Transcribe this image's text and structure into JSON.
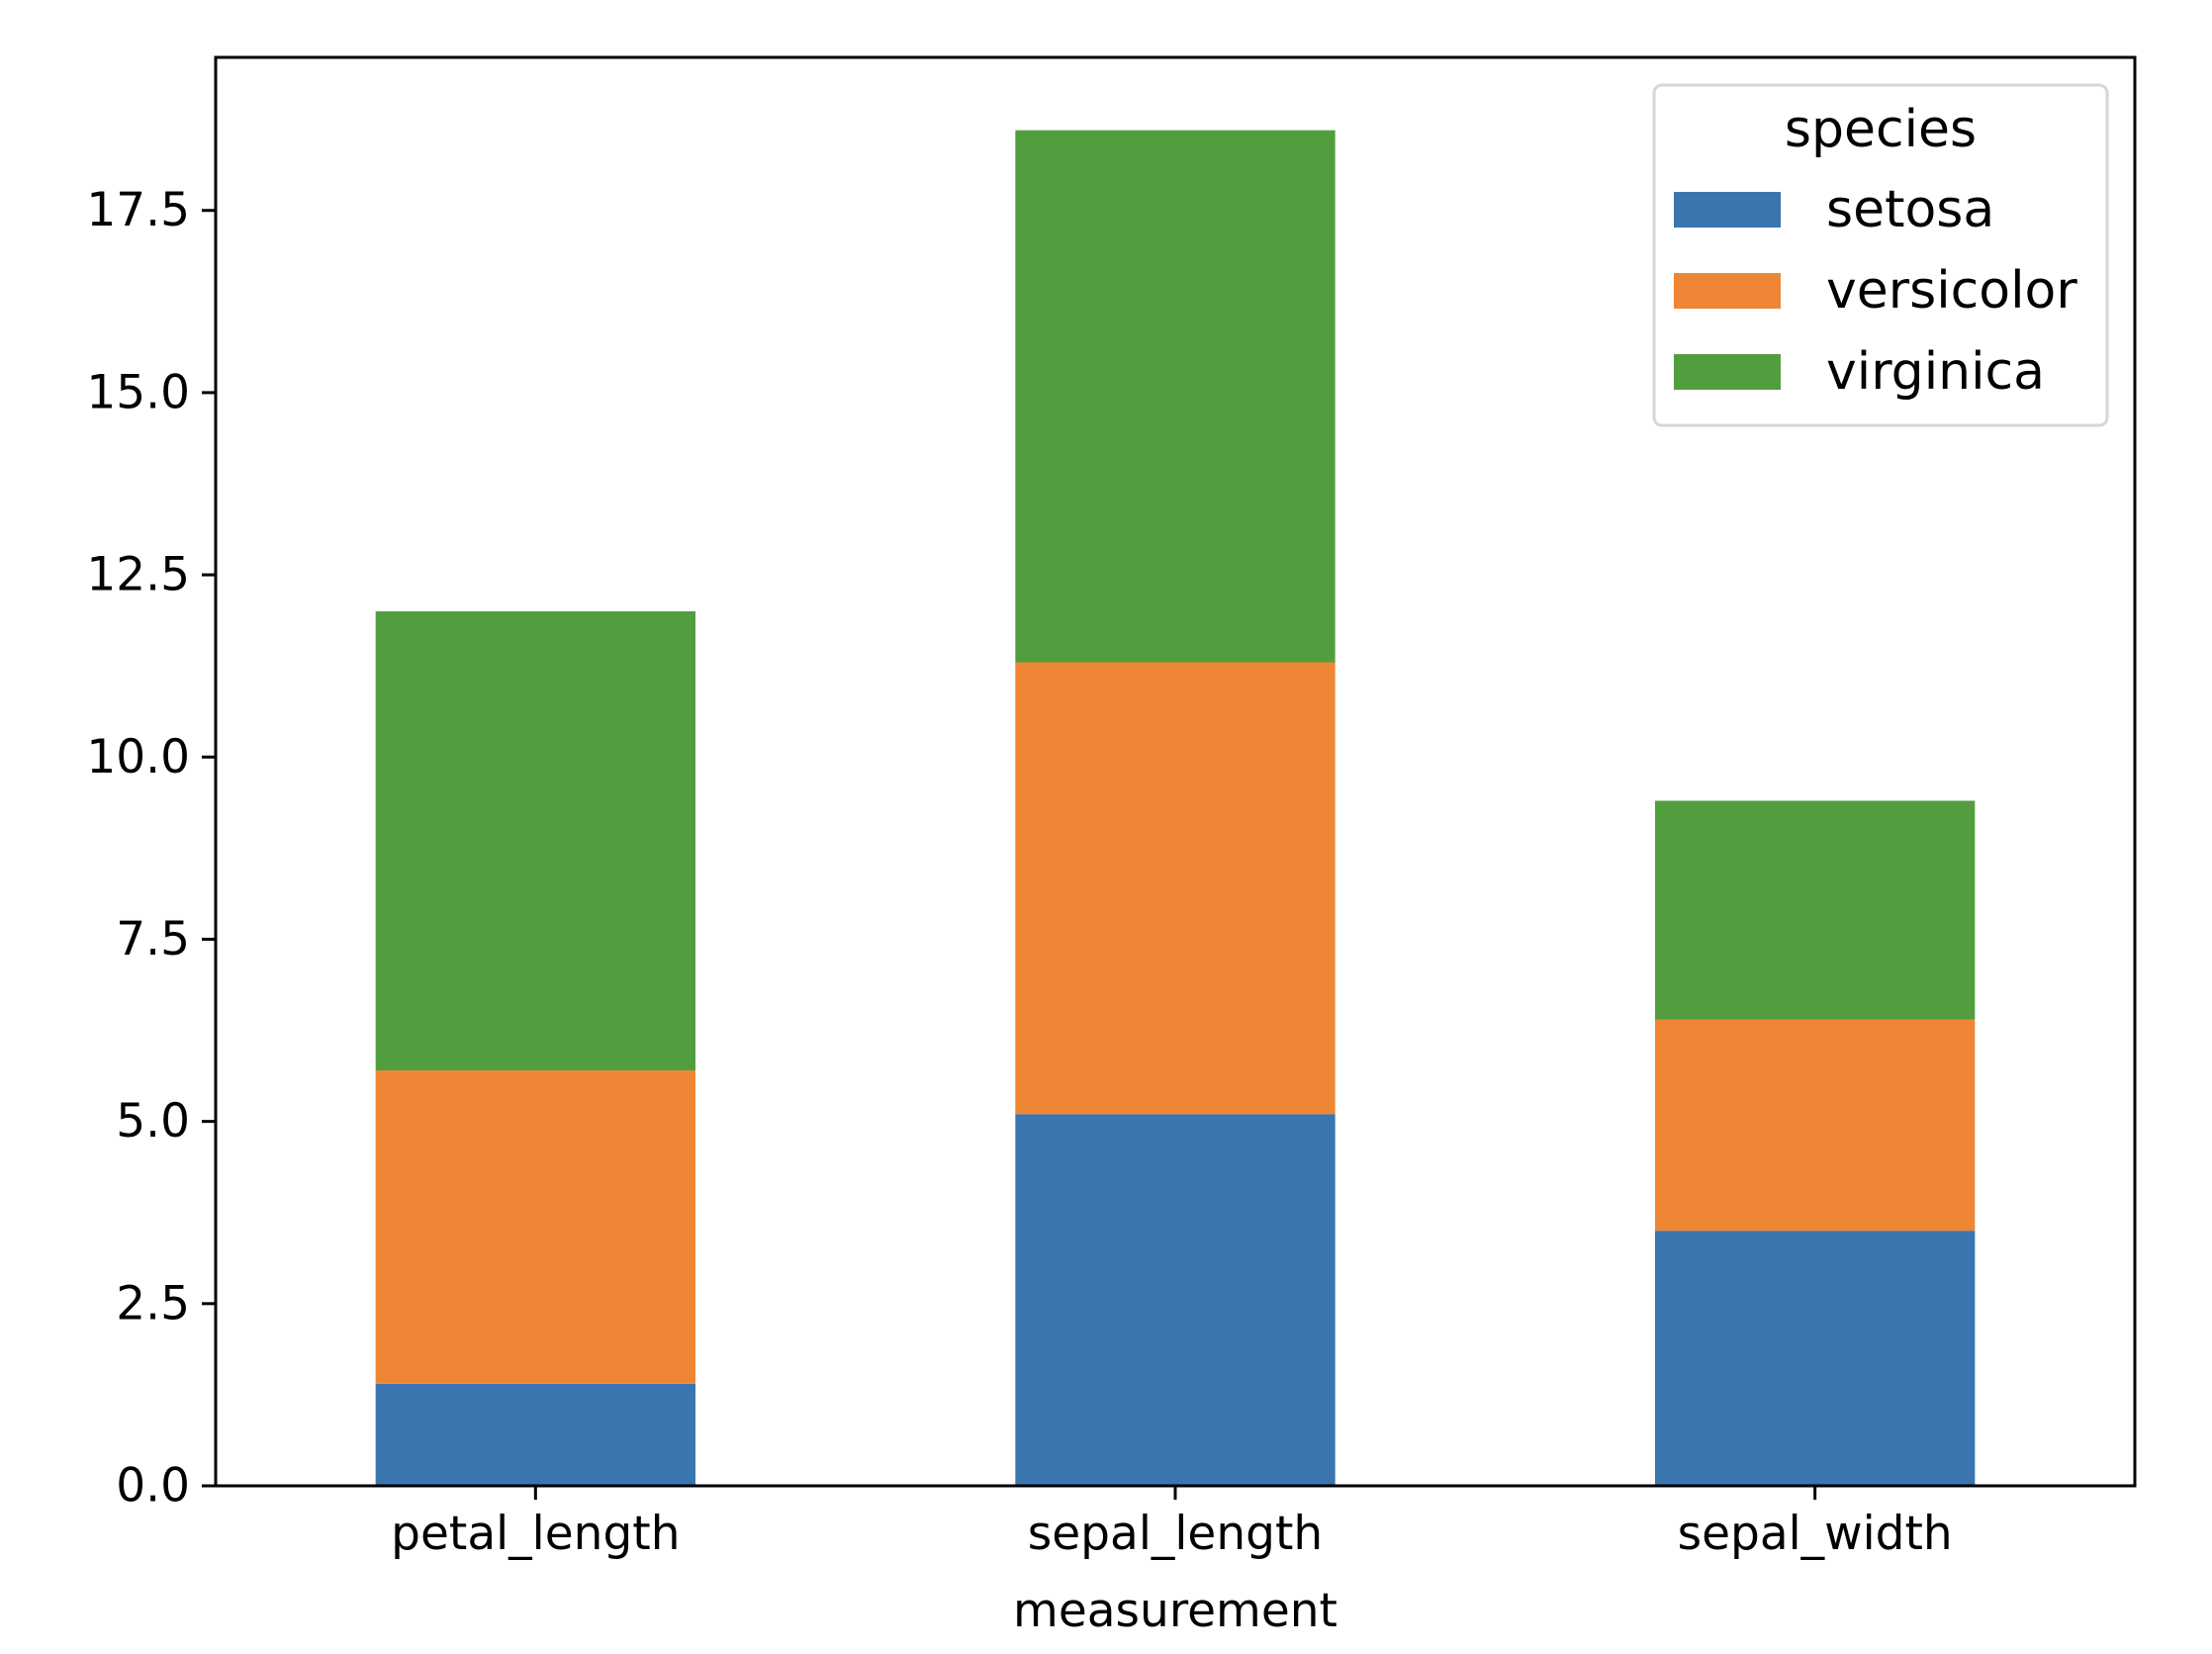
{
  "chart_data": {
    "type": "bar",
    "stacked": true,
    "title": "",
    "xlabel": "measurement",
    "ylabel": "",
    "categories": [
      "petal_length",
      "sepal_length",
      "sepal_width"
    ],
    "series": [
      {
        "name": "setosa",
        "color": "#3a75af",
        "values": [
          1.4,
          5.1,
          3.5
        ]
      },
      {
        "name": "versicolor",
        "color": "#ef8636",
        "values": [
          4.3,
          6.2,
          2.9
        ]
      },
      {
        "name": "virginica",
        "color": "#529e3e",
        "values": [
          6.3,
          7.3,
          3.0
        ]
      }
    ],
    "ylim": [
      0,
      19.6
    ],
    "yticks": [
      0.0,
      2.5,
      5.0,
      7.5,
      10.0,
      12.5,
      15.0,
      17.5
    ],
    "ytick_labels": [
      "0.0",
      "2.5",
      "5.0",
      "7.5",
      "10.0",
      "12.5",
      "15.0",
      "17.5"
    ],
    "grid": false,
    "legend": {
      "title": "species",
      "position": "top-right"
    }
  }
}
